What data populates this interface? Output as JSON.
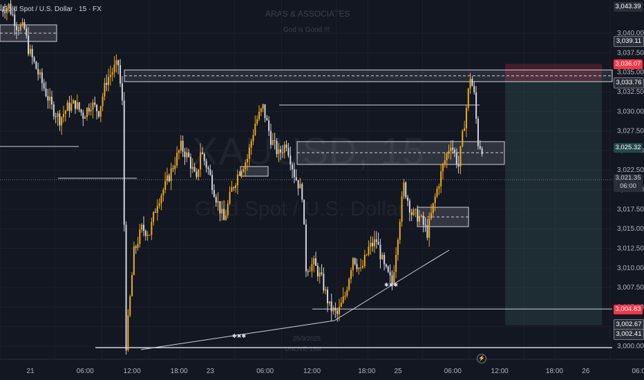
{
  "symbol_line": "Gold Spot / U.S. Dollar · 15 · FX",
  "watermark": {
    "title": "ARAS & ASSOCIATES",
    "subtitle": "God is Good !!!",
    "big_symbol": "XAUUSD, 15",
    "big_name": "Gold Spot / U.S. Dollar",
    "date_label": "25/3/2025",
    "code_label": "UNLIVE-15M"
  },
  "annotations": [
    {
      "text": "✱✖✱"
    },
    {
      "text": "✱✖✱"
    }
  ],
  "price_badges": {
    "top": "3,043.39",
    "upper": "3,039.11",
    "target": "3,036.07",
    "level": "3,033.76",
    "current": "3,025.32",
    "crosshair_price": "3,021.35",
    "crosshair_time": "06:00",
    "stop": "3,004.83",
    "low1": "3,002.67",
    "low2": "3,002.41"
  },
  "colors": {
    "bull": "#f0a81a",
    "bear": "#d1d4dc",
    "target": "#f23645",
    "zone": "#3e5a5a",
    "bg": "#131722"
  },
  "chart_data": {
    "type": "candlestick",
    "title": "Gold Spot / U.S. Dollar · 15 · FX",
    "ylim": [
      2997.5,
      3045.0
    ],
    "y_ticks": [
      "3,040.00",
      "3,037.50",
      "3,035.00",
      "3,032.50",
      "3,030.00",
      "3,027.50",
      "3,025.00",
      "3,022.50",
      "3,020.00",
      "3,017.50",
      "3,015.00",
      "3,012.50",
      "3,010.00",
      "3,007.50",
      "3,005.00",
      "3,002.50",
      "3,000.00"
    ],
    "y_tick_values": [
      3040.0,
      3037.5,
      3035.0,
      3032.5,
      3030.0,
      3027.5,
      3025.0,
      3022.5,
      3020.0,
      3017.5,
      3015.0,
      3012.5,
      3010.0,
      3007.5,
      3005.0,
      3002.5,
      3000.0
    ],
    "x_ticks": [
      "21",
      "06:00",
      "12:00",
      "18:00",
      "23",
      "06:00",
      "12:00",
      "18:00",
      "25",
      "06:00",
      "12:00",
      "18:00",
      "26",
      "06:00"
    ],
    "x_tick_index": [
      0,
      28,
      52,
      76,
      92,
      120,
      144,
      172,
      188,
      216,
      240,
      268,
      284,
      312
    ],
    "close_path": [
      [
        0,
        3043.0
      ],
      [
        4,
        3043.5
      ],
      [
        8,
        3041.0
      ],
      [
        12,
        3040.5
      ],
      [
        14,
        3038.0
      ],
      [
        18,
        3035.5
      ],
      [
        22,
        3033.0
      ],
      [
        26,
        3030.5
      ],
      [
        30,
        3029.0
      ],
      [
        34,
        3030.5
      ],
      [
        38,
        3031.0
      ],
      [
        42,
        3029.5
      ],
      [
        46,
        3031.0
      ],
      [
        50,
        3030.0
      ],
      [
        54,
        3034.0
      ],
      [
        58,
        3035.5
      ],
      [
        60,
        3036.0
      ],
      [
        62,
        3031.0
      ],
      [
        64,
        3000.2
      ],
      [
        68,
        3012.0
      ],
      [
        72,
        3015.0
      ],
      [
        76,
        3014.5
      ],
      [
        80,
        3018.5
      ],
      [
        84,
        3020.5
      ],
      [
        88,
        3023.0
      ],
      [
        92,
        3025.5
      ],
      [
        96,
        3024.0
      ],
      [
        100,
        3021.0
      ],
      [
        102,
        3025.0
      ],
      [
        106,
        3022.5
      ],
      [
        110,
        3019.0
      ],
      [
        114,
        3016.0
      ],
      [
        118,
        3020.0
      ],
      [
        122,
        3022.5
      ],
      [
        126,
        3024.0
      ],
      [
        130,
        3028.5
      ],
      [
        134,
        3030.5
      ],
      [
        138,
        3026.5
      ],
      [
        142,
        3024.5
      ],
      [
        146,
        3026.0
      ],
      [
        150,
        3022.0
      ],
      [
        154,
        3019.5
      ],
      [
        156,
        3010.0
      ],
      [
        160,
        3010.5
      ],
      [
        164,
        3008.5
      ],
      [
        168,
        3005.0
      ],
      [
        172,
        3004.0
      ],
      [
        176,
        3006.5
      ],
      [
        180,
        3011.5
      ],
      [
        184,
        3009.5
      ],
      [
        188,
        3012.5
      ],
      [
        192,
        3013.5
      ],
      [
        196,
        3010.0
      ],
      [
        200,
        3008.0
      ],
      [
        204,
        3016.5
      ],
      [
        206,
        3020.5
      ],
      [
        210,
        3017.0
      ],
      [
        214,
        3016.5
      ],
      [
        218,
        3014.5
      ],
      [
        222,
        3019.0
      ],
      [
        226,
        3023.0
      ],
      [
        230,
        3026.0
      ],
      [
        234,
        3023.0
      ],
      [
        238,
        3030.5
      ],
      [
        240,
        3034.5
      ],
      [
        242,
        3032.0
      ],
      [
        244,
        3026.0
      ],
      [
        246,
        3025.3
      ]
    ],
    "levels": [
      {
        "name": "resistance-zone-top",
        "value": 3035.3
      },
      {
        "name": "resistance-zone-bottom",
        "value": 3033.8
      },
      {
        "name": "target",
        "value": 3036.07
      },
      {
        "name": "stop",
        "value": 3004.83
      },
      {
        "name": "low-line",
        "value": 2999.8
      }
    ],
    "trade_box": {
      "entry_top": 3036.07,
      "entry": 3033.76,
      "stop_bottom": 3002.67,
      "direction": "short"
    }
  }
}
